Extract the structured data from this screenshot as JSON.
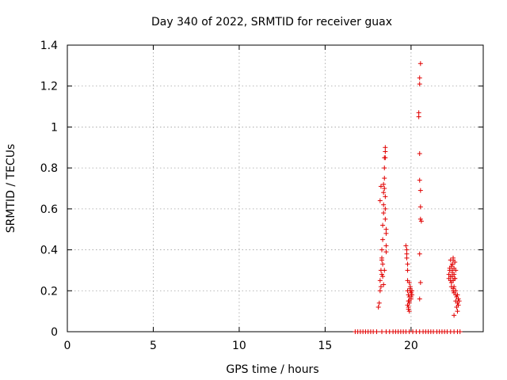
{
  "chart_data": {
    "type": "scatter",
    "title": "Day 340 of 2022, SRMTID for receiver guax",
    "xlabel": "GPS time / hours",
    "ylabel": "SRMTID / TECUs",
    "xlim": [
      0,
      24.2
    ],
    "ylim": [
      0,
      1.4
    ],
    "xticks": [
      0,
      5,
      10,
      15,
      20
    ],
    "xtick_labels": [
      "0",
      "5",
      "10",
      "15",
      "20"
    ],
    "yticks": [
      0,
      0.2,
      0.4,
      0.6,
      0.8,
      1.0,
      1.2,
      1.4
    ],
    "ytick_labels": [
      "0",
      "0.2",
      "0.4",
      "0.6",
      "0.8",
      "1",
      "1.2",
      "1.4"
    ],
    "grid": true,
    "marker": "+",
    "color": "#e00000",
    "series": [
      {
        "x": [
          16.75,
          16.9,
          17.05,
          17.2,
          17.35,
          17.5,
          17.65,
          17.8,
          18.0,
          18.3,
          18.55,
          18.75,
          18.95,
          19.1,
          19.25,
          19.4,
          19.55,
          19.7,
          19.9,
          20.1,
          20.3,
          20.5,
          20.7,
          20.85,
          21.0,
          21.15,
          21.3,
          21.5,
          21.65,
          21.8,
          21.95,
          22.1,
          22.3,
          22.5,
          22.7,
          22.85,
          18.1,
          18.15,
          18.2,
          18.2,
          18.25,
          18.25,
          18.3,
          18.3,
          18.3,
          18.35,
          18.35,
          18.35,
          18.4,
          18.4,
          18.4,
          18.4,
          18.45,
          18.45,
          18.45,
          18.45,
          18.5,
          18.5,
          18.5,
          18.5,
          18.55,
          18.55,
          18.3,
          18.35,
          18.4,
          18.45,
          18.2,
          18.25,
          18.5,
          18.5,
          18.55,
          18.55,
          19.7,
          19.75,
          19.75,
          19.8,
          19.8,
          19.8,
          19.85,
          19.85,
          19.85,
          19.9,
          19.9,
          19.9,
          19.95,
          19.95,
          20.0,
          20.0,
          20.05,
          20.05,
          19.8,
          19.85,
          19.9,
          19.95,
          20.0,
          19.75,
          19.8,
          19.9,
          20.45,
          20.45,
          20.5,
          20.5,
          20.5,
          20.5,
          20.55,
          20.55,
          20.55,
          20.6,
          20.5,
          20.55,
          22.2,
          22.25,
          22.3,
          22.3,
          22.35,
          22.35,
          22.4,
          22.4,
          22.4,
          22.45,
          22.45,
          22.45,
          22.5,
          22.5,
          22.5,
          22.55,
          22.55,
          22.6,
          22.6,
          22.65,
          22.65,
          22.7,
          22.7,
          22.75,
          22.75,
          22.8,
          22.35,
          22.4,
          22.45,
          22.5,
          22.55,
          22.6,
          22.3,
          22.4,
          22.5,
          22.6,
          22.7,
          22.2,
          22.25,
          22.45
        ],
        "y": [
          0,
          0,
          0,
          0,
          0,
          0,
          0,
          0,
          0,
          0,
          0,
          0,
          0,
          0,
          0,
          0,
          0,
          0,
          0,
          0,
          0,
          0,
          0,
          0,
          0,
          0,
          0,
          0,
          0,
          0,
          0,
          0,
          0,
          0,
          0,
          0,
          0.12,
          0.14,
          0.2,
          0.25,
          0.3,
          0.22,
          0.35,
          0.4,
          0.28,
          0.45,
          0.52,
          0.33,
          0.58,
          0.62,
          0.68,
          0.72,
          0.7,
          0.75,
          0.8,
          0.85,
          0.88,
          0.9,
          0.66,
          0.55,
          0.5,
          0.42,
          0.36,
          0.27,
          0.23,
          0.3,
          0.64,
          0.71,
          0.85,
          0.6,
          0.48,
          0.39,
          0.42,
          0.4,
          0.36,
          0.3,
          0.25,
          0.2,
          0.18,
          0.15,
          0.12,
          0.1,
          0.14,
          0.17,
          0.2,
          0.22,
          0.19,
          0.16,
          0.2,
          0.18,
          0.13,
          0.11,
          0.15,
          0.21,
          0.17,
          0.38,
          0.33,
          0.24,
          1.07,
          1.05,
          1.24,
          1.21,
          0.87,
          0.74,
          0.69,
          0.61,
          0.55,
          0.54,
          0.38,
          0.24,
          0.28,
          0.3,
          0.35,
          0.25,
          0.32,
          0.22,
          0.3,
          0.27,
          0.33,
          0.36,
          0.2,
          0.25,
          0.28,
          0.31,
          0.22,
          0.26,
          0.34,
          0.18,
          0.15,
          0.12,
          0.17,
          0.14,
          0.1,
          0.16,
          0.13,
          0.15,
          0.24,
          0.29,
          0.21,
          0.19,
          0.26,
          0.3,
          0.27,
          0.33,
          0.08,
          0.2,
          0.18,
          0.26,
          0.31,
          0.35
        ]
      }
    ],
    "extra_points": {
      "x": [
        20.55,
        20.5
      ],
      "y": [
        1.31,
        0.16
      ]
    }
  }
}
